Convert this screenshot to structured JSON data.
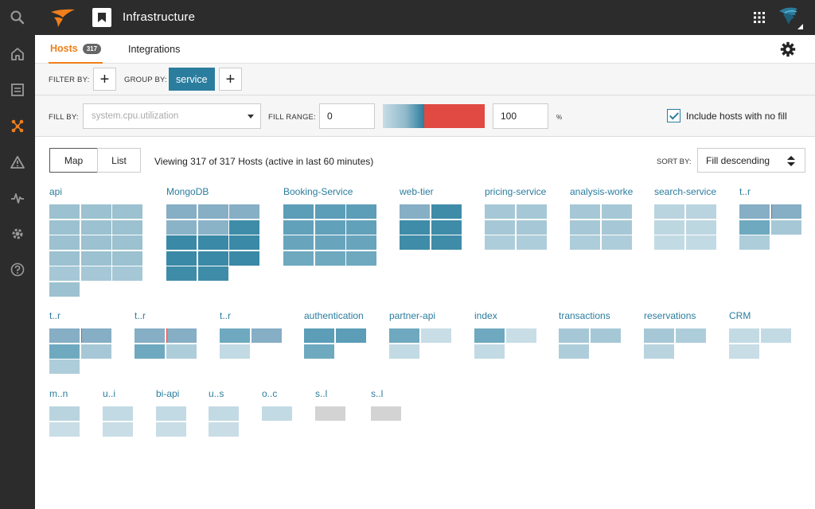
{
  "header": {
    "title": "Infrastructure",
    "icons": [
      "solarwinds-logo-icon",
      "bookmark-icon",
      "apps-grid-icon",
      "avatar"
    ]
  },
  "rail": {
    "icons": [
      "search-icon",
      "home-icon",
      "list-icon",
      "infrastructure-icon",
      "alert-icon",
      "metrics-icon",
      "settings-icon",
      "help-icon"
    ],
    "active": "infrastructure-icon",
    "accent": "#f07f1b"
  },
  "tabs": {
    "hosts_label": "Hosts",
    "hosts_count": "317",
    "integrations_label": "Integrations"
  },
  "filters": {
    "filter_by_label": "FILTER BY:",
    "group_by_label": "GROUP BY:",
    "group_by_value": "service",
    "add_symbol": "+"
  },
  "fill": {
    "fill_by_label": "FILL BY:",
    "metric_placeholder": "system.cpu.utilization",
    "fill_range_label": "FILL RANGE:",
    "range_min": "0",
    "range_max": "100",
    "unit": "%",
    "include_label": "Include hosts with no fill",
    "include_checked": true
  },
  "view": {
    "map_label": "Map",
    "list_label": "List",
    "viewing_text": "Viewing 317 of 317 Hosts (active in last 60 minutes)",
    "sort_by_label": "SORT BY:",
    "sort_value": "Fill descending"
  },
  "colors": {
    "brand_blue": "#2b7d9e",
    "over_red": "#e04a42",
    "no_data_gray": "#d3d3d3"
  },
  "groups": [
    {
      "name": "api",
      "rows": [
        [
          "#9cc1d0",
          "#9cc1d0",
          "#9cc1d0"
        ],
        [
          "#9cc1d0",
          "#9cc1d0",
          "#9cc1d0"
        ],
        [
          "#9cc1d0",
          "#9cc1d0",
          "#9cc1d0"
        ],
        [
          "#9cc1d0",
          "#9cc1d0",
          "#9cc1d0"
        ],
        [
          "#a6c8d6",
          "#a6c8d6",
          "#a6c8d6"
        ],
        [
          "#9cc1d0"
        ]
      ]
    },
    {
      "name": "MongoDB",
      "rows": [
        [
          "#86aec5",
          "#86aec5",
          "#86aec5"
        ],
        [
          "#8ab3c8",
          "#8ab3c8",
          "#3e8ca8"
        ],
        [
          "#3a89a6",
          "#3a89a6",
          "#3a89a6"
        ],
        [
          "#3a89a6",
          "#3a89a6",
          "#3a89a6"
        ],
        [
          "#3e8ca8",
          "#3e8ca8"
        ]
      ]
    },
    {
      "name": "Booking-Service",
      "rows": [
        [
          "#5c9db7",
          "#5c9db7",
          "#5c9db7"
        ],
        [
          "#62a1ba",
          "#62a1ba",
          "#62a1ba"
        ],
        [
          "#68a5bd",
          "#68a5bd",
          "#68a5bd"
        ],
        [
          "#6ea9bf",
          "#6ea9bf",
          "#6ea9bf"
        ]
      ]
    },
    {
      "name": "web-tier",
      "rows": [
        [
          "#86aec5",
          "#3e8ca8"
        ],
        [
          "#3e8ca8",
          "#3e8ca8"
        ],
        [
          "#3e8ca8",
          "#3e8ca8"
        ]
      ]
    },
    {
      "name": "pricing-service",
      "rows": [
        [
          "#a6c8d6",
          "#a6c8d6"
        ],
        [
          "#a6c8d6",
          "#a6c8d6"
        ],
        [
          "#aecdda",
          "#aecdda"
        ]
      ]
    },
    {
      "name": "analysis-worke",
      "rows": [
        [
          "#a6c8d6",
          "#a6c8d6"
        ],
        [
          "#a6c8d6",
          "#a6c8d6"
        ],
        [
          "#aecdda",
          "#aecdda"
        ]
      ]
    },
    {
      "name": "search-service",
      "rows": [
        [
          "#b9d4df",
          "#b9d4df"
        ],
        [
          "#bdd7e1",
          "#bdd7e1"
        ],
        [
          "#c2dae4",
          "#c2dae4"
        ]
      ]
    },
    {
      "name": "t..r",
      "rows": [
        [
          "#86aec5",
          "#86aec5"
        ],
        [
          "#6ea9bf",
          "#a6c8d6"
        ],
        [
          "#aecdda"
        ]
      ],
      "hot": [
        [
          0,
          1
        ]
      ]
    },
    {
      "name": "t..r",
      "rows": [
        [
          "#86aec5",
          "#86aec5"
        ],
        [
          "#6ea9bf",
          "#a6c8d6"
        ],
        [
          "#aecdda"
        ]
      ],
      "hot": [
        [
          0,
          1
        ]
      ]
    },
    {
      "name": "t..r",
      "rows": [
        [
          "#86aec5",
          "#86aec5"
        ],
        [
          "#6ea9bf",
          "#aecdda"
        ]
      ],
      "hot": [
        [
          0,
          1
        ]
      ]
    },
    {
      "name": "t..r",
      "rows": [
        [
          "#6ea9bf",
          "#86aec5"
        ],
        [
          "#c2dae4"
        ]
      ]
    },
    {
      "name": "authentication",
      "rows": [
        [
          "#5c9db7",
          "#5c9db7"
        ],
        [
          "#6ea9bf"
        ]
      ]
    },
    {
      "name": "partner-api",
      "rows": [
        [
          "#6ea9bf",
          "#c8dde6"
        ],
        [
          "#c2dae4"
        ]
      ]
    },
    {
      "name": "index",
      "rows": [
        [
          "#6ea9bf",
          "#c8dde6"
        ],
        [
          "#c2dae4"
        ]
      ]
    },
    {
      "name": "transactions",
      "rows": [
        [
          "#a6c8d6",
          "#a6c8d6"
        ],
        [
          "#aecdda"
        ]
      ]
    },
    {
      "name": "reservations",
      "rows": [
        [
          "#a6c8d6",
          "#aecdda"
        ],
        [
          "#b9d4df"
        ]
      ]
    },
    {
      "name": "CRM",
      "rows": [
        [
          "#c2dae4",
          "#c2dae4"
        ],
        [
          "#c8dde6"
        ]
      ]
    },
    {
      "name": "m..n",
      "rows": [
        [
          "#b9d4df"
        ],
        [
          "#c8dde6"
        ]
      ]
    },
    {
      "name": "u..i",
      "rows": [
        [
          "#c2dae4"
        ],
        [
          "#c8dde6"
        ]
      ]
    },
    {
      "name": "bi-api",
      "rows": [
        [
          "#c2dae4"
        ],
        [
          "#c8dde6"
        ]
      ]
    },
    {
      "name": "u..s",
      "rows": [
        [
          "#c2dae4"
        ],
        [
          "#c8dde6"
        ]
      ]
    },
    {
      "name": "o..c",
      "rows": [
        [
          "#c2dae4"
        ]
      ]
    },
    {
      "name": "s..l",
      "rows": [
        [
          "#d3d3d3"
        ]
      ]
    },
    {
      "name": "s..l",
      "rows": [
        [
          "#d3d3d3"
        ]
      ]
    }
  ]
}
